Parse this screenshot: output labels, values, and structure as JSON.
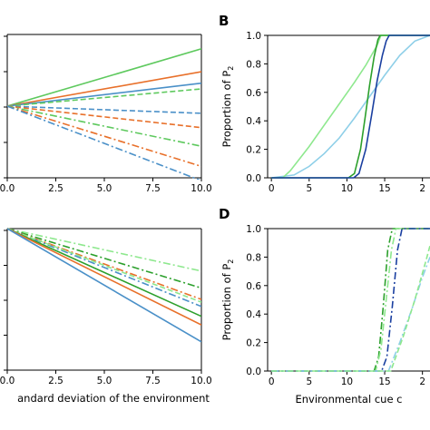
{
  "chart_data": [
    {
      "id": "A",
      "type": "line",
      "panel_label": "",
      "xlabel": "",
      "ylabel": "",
      "xlim": [
        0,
        10
      ],
      "x_ticks": [
        "0.0",
        "2.5",
        "5.0",
        "7.5",
        "10.0"
      ],
      "series": [
        {
          "color": "#5ec95e",
          "dash": "solid",
          "x": [
            0,
            10
          ],
          "y": [
            0.0,
            0.4
          ]
        },
        {
          "color": "#e8702a",
          "dash": "solid",
          "x": [
            0,
            10
          ],
          "y": [
            0.0,
            0.24
          ]
        },
        {
          "color": "#4a90c8",
          "dash": "solid",
          "x": [
            0,
            10
          ],
          "y": [
            0.0,
            0.16
          ]
        },
        {
          "color": "#5ec95e",
          "dash": "dashed",
          "x": [
            0,
            10
          ],
          "y": [
            0.0,
            0.12
          ]
        },
        {
          "color": "#4a90c8",
          "dash": "dashed",
          "x": [
            0,
            10
          ],
          "y": [
            0.0,
            -0.05
          ]
        },
        {
          "color": "#e8702a",
          "dash": "dashed",
          "x": [
            0,
            10
          ],
          "y": [
            0.0,
            -0.15
          ]
        },
        {
          "color": "#5ec95e",
          "dash": "dashdot",
          "x": [
            0,
            10
          ],
          "y": [
            0.0,
            -0.28
          ]
        },
        {
          "color": "#e8702a",
          "dash": "dashdot",
          "x": [
            0,
            10
          ],
          "y": [
            0.0,
            -0.42
          ]
        },
        {
          "color": "#4a90c8",
          "dash": "dashdot",
          "x": [
            0,
            10
          ],
          "y": [
            0.0,
            -0.52
          ]
        }
      ]
    },
    {
      "id": "B",
      "type": "line",
      "panel_label": "B",
      "xlabel": "",
      "ylabel": "Proportion of P2",
      "xlim": [
        -0.5,
        21
      ],
      "ylim": [
        0,
        1.0
      ],
      "x_ticks": [
        "0",
        "5",
        "10",
        "15",
        "2"
      ],
      "y_ticks": [
        "0.0",
        "0.2",
        "0.4",
        "0.6",
        "0.8",
        "1.0"
      ],
      "series": [
        {
          "color": "#8ecfe8",
          "dash": "solid",
          "x": [
            0,
            3,
            5,
            7,
            9,
            11,
            13,
            15,
            17,
            19,
            21
          ],
          "y": [
            0,
            0.02,
            0.08,
            0.17,
            0.28,
            0.42,
            0.57,
            0.72,
            0.86,
            0.96,
            1.0
          ]
        },
        {
          "color": "#8ee88e",
          "dash": "solid",
          "x": [
            0,
            1.5,
            2.5,
            5,
            7,
            9,
            11,
            12.5,
            14,
            14.5,
            21
          ],
          "y": [
            0,
            0,
            0.05,
            0.22,
            0.37,
            0.52,
            0.67,
            0.79,
            0.93,
            1.0,
            1.0
          ]
        },
        {
          "color": "#2ca02c",
          "dash": "solid",
          "x": [
            0,
            10.2,
            11.0,
            11.8,
            12.4,
            13.0,
            13.6,
            14.1,
            14.4,
            21
          ],
          "y": [
            0,
            0,
            0.03,
            0.2,
            0.42,
            0.65,
            0.85,
            0.97,
            1.0,
            1.0
          ]
        },
        {
          "color": "#1a3fa0",
          "dash": "solid",
          "x": [
            0,
            10.9,
            11.6,
            12.5,
            13.3,
            14.0,
            14.7,
            15.2,
            15.6,
            21
          ],
          "y": [
            0,
            0,
            0.03,
            0.2,
            0.45,
            0.68,
            0.86,
            0.96,
            1.0,
            1.0
          ]
        }
      ]
    },
    {
      "id": "C",
      "type": "line",
      "panel_label": "",
      "xlabel": "andard deviation of the environment",
      "ylabel": "",
      "xlim": [
        0,
        10
      ],
      "x_ticks": [
        "0.0",
        "2.5",
        "5.0",
        "7.5",
        "10.0"
      ],
      "series": [
        {
          "color": "#8ee88e",
          "dash": "dashdot",
          "x": [
            0,
            10
          ],
          "y": [
            0,
            -0.3
          ]
        },
        {
          "color": "#2ca02c",
          "dash": "dashdot",
          "x": [
            0,
            10
          ],
          "y": [
            0,
            -0.42
          ]
        },
        {
          "color": "#e8702a",
          "dash": "dashdot",
          "x": [
            0,
            10
          ],
          "y": [
            0,
            -0.5
          ]
        },
        {
          "color": "#4a90c8",
          "dash": "dashdot",
          "x": [
            0,
            10
          ],
          "y": [
            0,
            -0.55
          ]
        },
        {
          "color": "#8ee88e",
          "dash": "dashed",
          "x": [
            0,
            10
          ],
          "y": [
            0,
            -0.52
          ]
        },
        {
          "color": "#2ca02c",
          "dash": "solid",
          "x": [
            0,
            10
          ],
          "y": [
            0,
            -0.62
          ]
        },
        {
          "color": "#e8702a",
          "dash": "solid",
          "x": [
            0,
            10
          ],
          "y": [
            0,
            -0.68
          ]
        },
        {
          "color": "#4a90c8",
          "dash": "solid",
          "x": [
            0,
            10
          ],
          "y": [
            0,
            -0.8
          ]
        }
      ]
    },
    {
      "id": "D",
      "type": "line",
      "panel_label": "D",
      "xlabel": "Environmental cue c",
      "ylabel": "Proportion of P2",
      "xlim": [
        -0.5,
        21
      ],
      "ylim": [
        0,
        1.0
      ],
      "x_ticks": [
        "0",
        "5",
        "10",
        "15",
        "2"
      ],
      "y_ticks": [
        "0.0",
        "0.2",
        "0.4",
        "0.6",
        "0.8",
        "1.0"
      ],
      "series": [
        {
          "color": "#2ca02c",
          "dash": "dashdot",
          "x": [
            0,
            13.6,
            14.2,
            14.8,
            15.4,
            16.0,
            21
          ],
          "y": [
            0,
            0,
            0.1,
            0.45,
            0.85,
            1.0,
            1.0
          ]
        },
        {
          "color": "#8ee88e",
          "dash": "dashdot",
          "x": [
            0,
            13.8,
            14.5,
            15.2,
            15.9,
            16.5,
            21
          ],
          "y": [
            0,
            0,
            0.15,
            0.5,
            0.85,
            1.0,
            1.0
          ]
        },
        {
          "color": "#1a3fa0",
          "dash": "dashdot",
          "x": [
            0,
            14.6,
            15.3,
            16.0,
            16.7,
            17.3,
            21
          ],
          "y": [
            0,
            0,
            0.1,
            0.45,
            0.85,
            1.0,
            1.0
          ]
        },
        {
          "color": "#8ecfe8",
          "dash": "dashdot",
          "x": [
            0,
            15.5,
            17,
            18.5,
            20,
            21
          ],
          "y": [
            0,
            0,
            0.2,
            0.42,
            0.66,
            0.8
          ]
        },
        {
          "color": "#8ee88e",
          "dash": "dashed",
          "x": [
            0,
            15.8,
            17.5,
            19.0,
            20.5,
            21
          ],
          "y": [
            0,
            0,
            0.25,
            0.5,
            0.78,
            0.88
          ]
        }
      ]
    }
  ]
}
